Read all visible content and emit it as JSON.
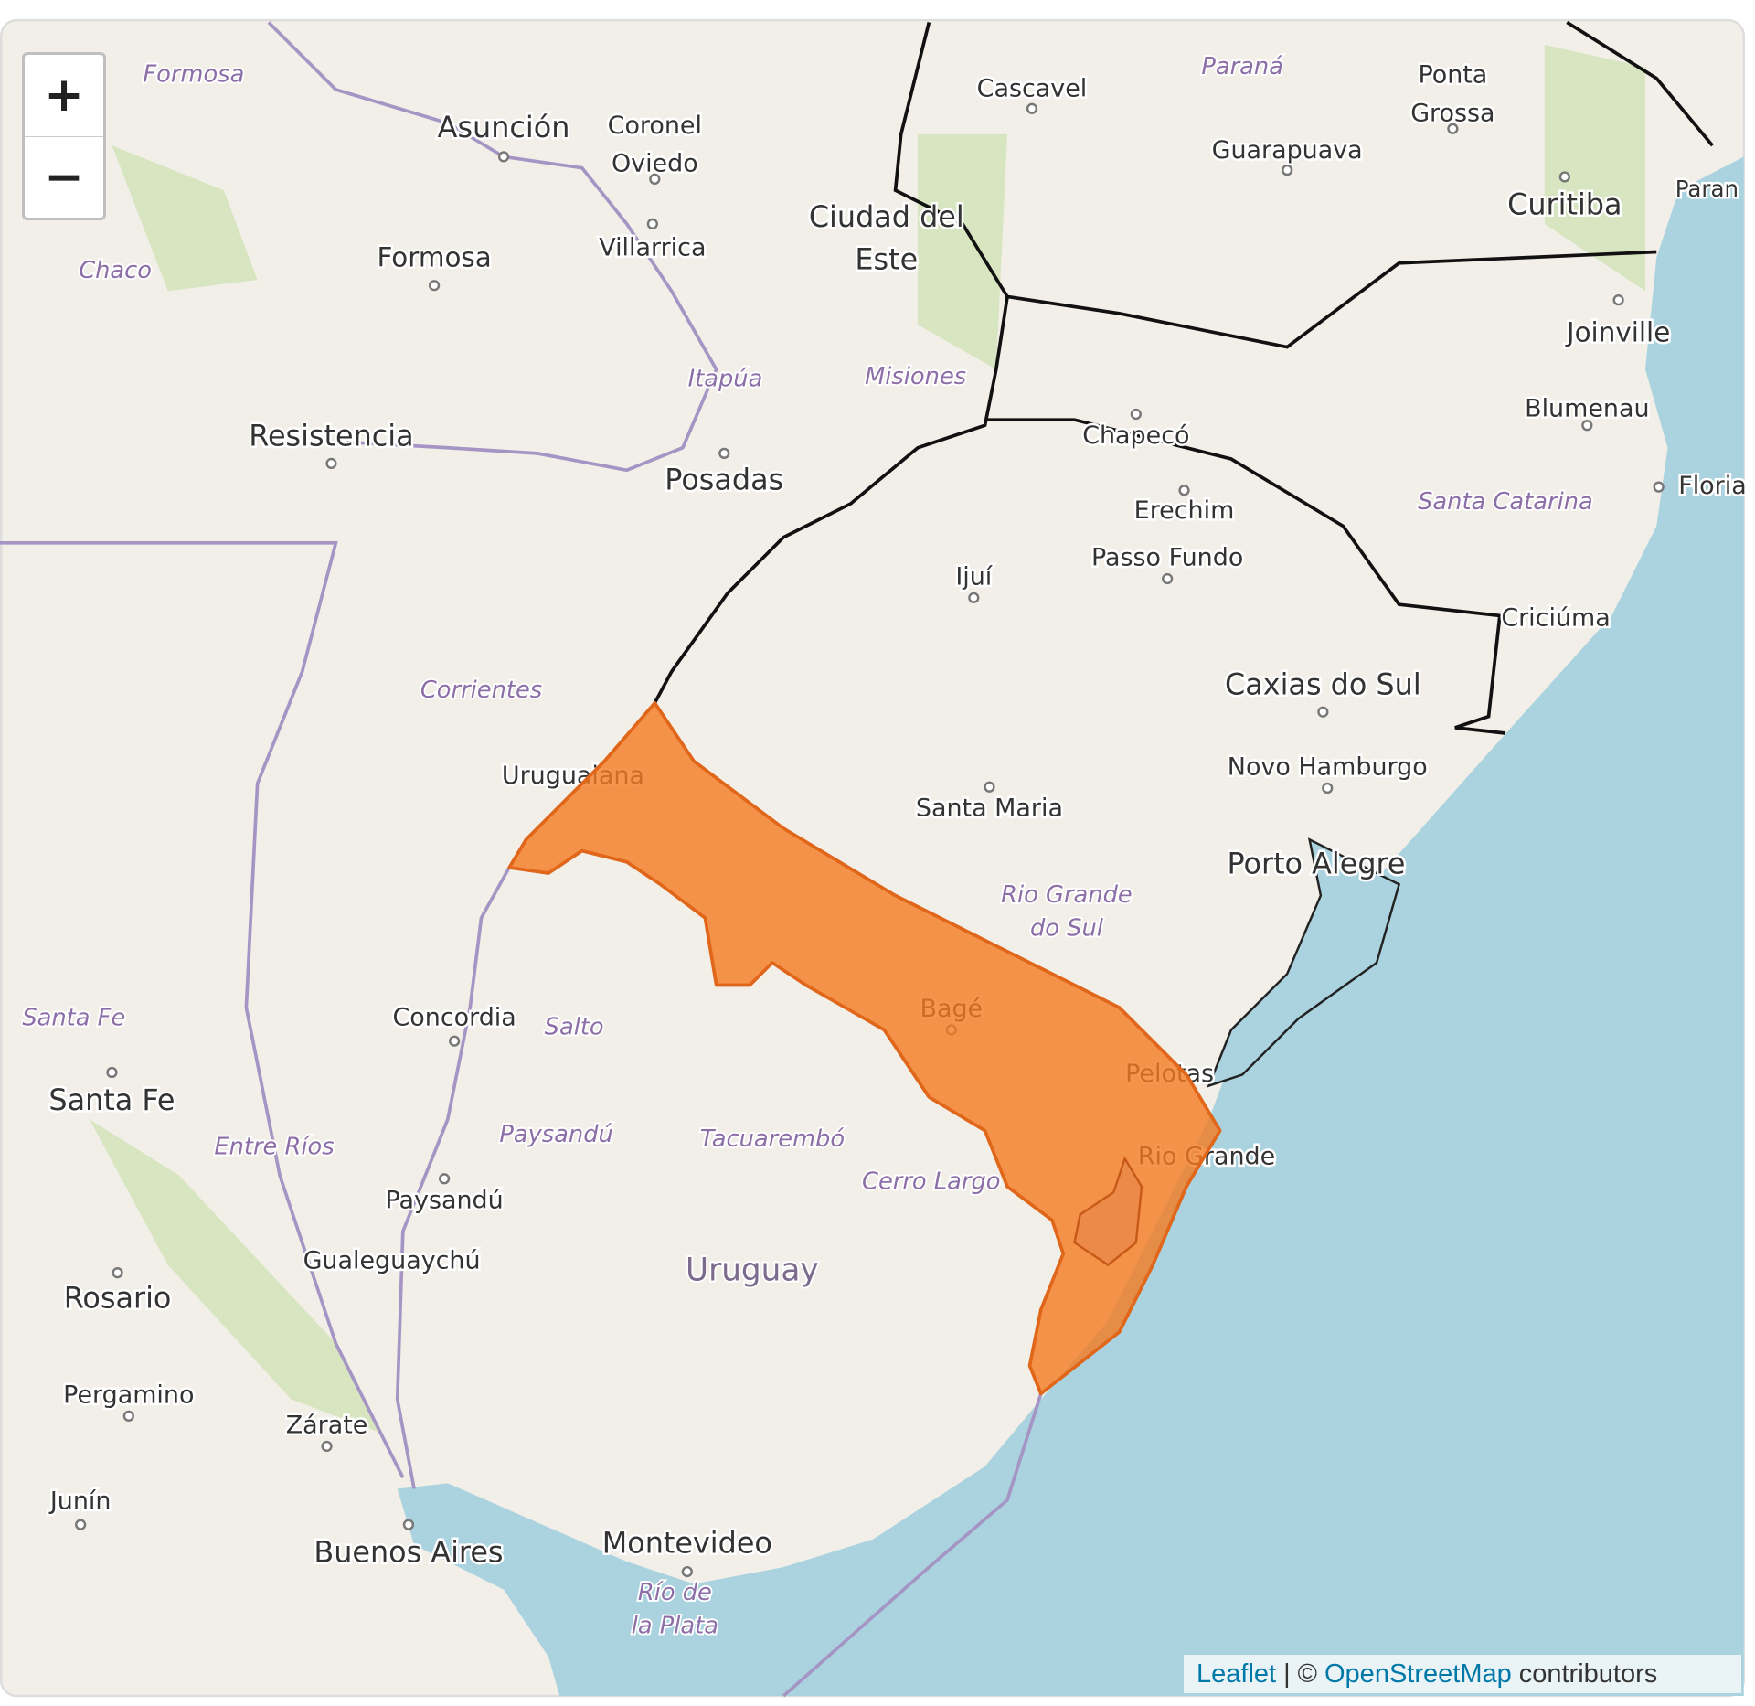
{
  "map": {
    "zoom_in": "+",
    "zoom_out": "−",
    "cities": [
      [
        "Asunción"
      ],
      [
        "Coronel",
        "Oviedo"
      ],
      [
        "Cascavel"
      ],
      [
        "Ponta",
        "Grossa"
      ],
      [
        "Guarapuava"
      ],
      [
        "Curitiba"
      ],
      [
        "Ciudad del",
        "Este"
      ],
      [
        "Villarrica"
      ],
      [
        "Formosa"
      ],
      [
        "Joinville"
      ],
      [
        "Blumenau"
      ],
      [
        "Resistencia"
      ],
      [
        "Posadas"
      ],
      [
        "Chapecó"
      ],
      [
        "Erechim"
      ],
      [
        "Passo Fundo"
      ],
      [
        "Ijuí"
      ],
      [
        "Floria"
      ],
      [
        "Criciúma"
      ],
      [
        "Caxias do Sul"
      ],
      [
        "Uruguaiana"
      ],
      [
        "Novo Hamburgo"
      ],
      [
        "Santa Maria"
      ],
      [
        "Porto Alegre"
      ],
      [
        "Bagé"
      ],
      [
        "Pelotas"
      ],
      [
        "Rio Grande"
      ],
      [
        "Concordia"
      ],
      [
        "Santa Fe"
      ],
      [
        "Paysandú"
      ],
      [
        "Gualeguaychú"
      ],
      [
        "Rosario"
      ],
      [
        "Pergamino"
      ],
      [
        "Zárate"
      ],
      [
        "Junín"
      ],
      [
        "Buenos Aires"
      ],
      [
        "Montevideo"
      ],
      [
        "Paran"
      ]
    ],
    "regions": [
      [
        "Formosa"
      ],
      [
        "Paraná"
      ],
      [
        "Chaco"
      ],
      [
        "Itapúa"
      ],
      [
        "Misiones"
      ],
      [
        "Santa Catarina"
      ],
      [
        "Corrientes"
      ],
      [
        "Rio Grande",
        "do Sul"
      ],
      [
        "Santa Fe"
      ],
      [
        "Salto"
      ],
      [
        "Entre Ríos"
      ],
      [
        "Paysandú"
      ],
      [
        "Tacuarembó"
      ],
      [
        "Cerro Largo"
      ],
      [
        "Río de",
        "la Plata"
      ]
    ],
    "country": "Uruguay"
  },
  "attribution": {
    "leaflet": "Leaflet",
    "separator": "|",
    "copyright": "©",
    "osm": "OpenStreetMap",
    "contributors": "contributors"
  }
}
